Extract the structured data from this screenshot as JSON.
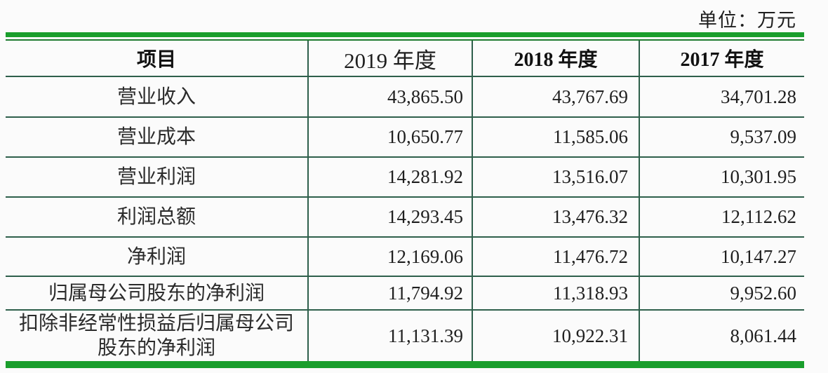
{
  "page": {
    "unit_label": "单位：万元"
  },
  "colors": {
    "bar_green": "#1a9e2c",
    "thin_line_green": "#1d7a2e",
    "table_border_green": "#2e5f4b",
    "text": "#262626",
    "background": "#fbfbfb"
  },
  "table": {
    "columns": [
      {
        "label": "项目"
      },
      {
        "label": "2019 年度"
      },
      {
        "label": "2018 年度"
      },
      {
        "label": "2017 年度"
      }
    ],
    "rows": [
      {
        "item": "营业收入",
        "y2019": "43,865.50",
        "y2018": "43,767.69",
        "y2017": "34,701.28"
      },
      {
        "item": "营业成本",
        "y2019": "10,650.77",
        "y2018": "11,585.06",
        "y2017": "9,537.09"
      },
      {
        "item": "营业利润",
        "y2019": "14,281.92",
        "y2018": "13,516.07",
        "y2017": "10,301.95"
      },
      {
        "item": "利润总额",
        "y2019": "14,293.45",
        "y2018": "13,476.32",
        "y2017": "12,112.62"
      },
      {
        "item": "净利润",
        "y2019": "12,169.06",
        "y2018": "11,476.72",
        "y2017": "10,147.27"
      },
      {
        "item": "归属母公司股东的净利润",
        "y2019": "11,794.92",
        "y2018": "11,318.93",
        "y2017": "9,952.60"
      },
      {
        "item": "扣除非经常性损益后归属母公司股东的净利润",
        "y2019": "11,131.39",
        "y2018": "10,922.31",
        "y2017": "8,061.44"
      }
    ]
  }
}
